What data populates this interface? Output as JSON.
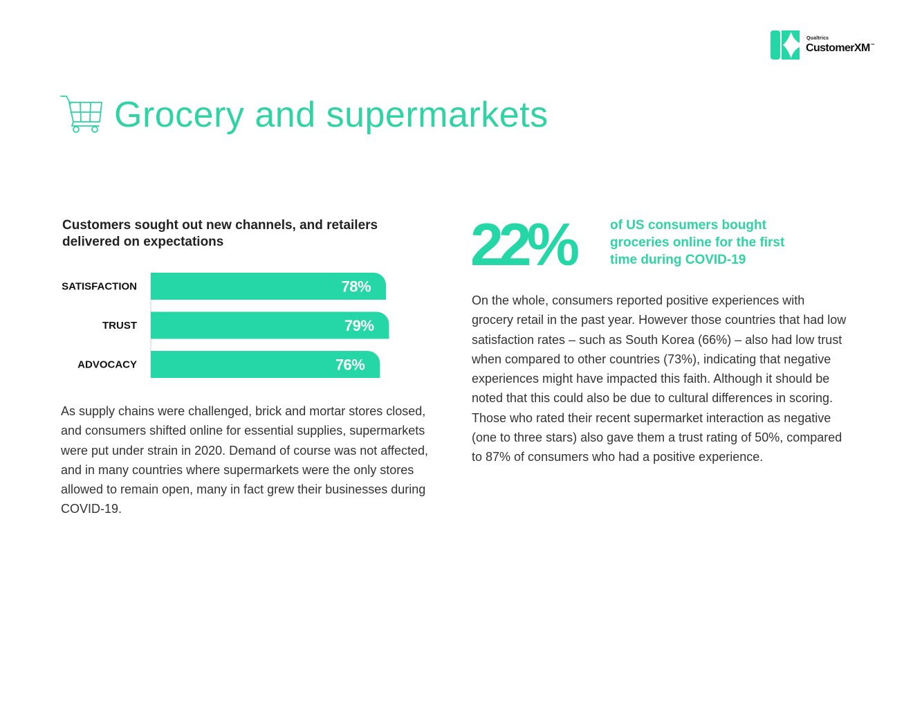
{
  "brand": {
    "company": "Qualtrics",
    "product": "CustomerXM",
    "trademark": "™",
    "accent_color": "#25d6a6"
  },
  "header": {
    "icon": "shopping-cart-icon",
    "title": "Grocery and supermarkets"
  },
  "left": {
    "chart_heading": "Customers sought out new channels, and retailers delivered on expectations",
    "body": "As supply chains were challenged, brick and mortar stores closed, and consumers shifted online for essential supplies, supermarkets were put under strain in 2020. Demand of course was not affected, and in many countries where supermarkets were the only stores allowed to remain open, many in fact grew their businesses during COVID-19."
  },
  "chart_data": {
    "type": "bar",
    "orientation": "horizontal",
    "categories": [
      "SATISFACTION",
      "TRUST",
      "ADVOCACY"
    ],
    "values": [
      78,
      79,
      76
    ],
    "value_labels": [
      "78%",
      "79%",
      "76%"
    ],
    "unit": "%",
    "title": "",
    "xlabel": "",
    "ylabel": "",
    "grid": false,
    "legend": "none",
    "bar_color": "#25d6a6",
    "label_color": "#ffffff"
  },
  "right": {
    "stat": "22%",
    "stat_caption": "of US consumers bought groceries online for the first time during COVID-19",
    "body": "On the whole, consumers reported positive experiences with grocery retail in the past year. However those countries that had low satisfaction rates – such as South Korea (66%) – also had low trust when compared to other countries (73%), indicating that negative experiences might have impacted this faith. Although it should be noted that this could also be due to cultural differences in scoring. Those who rated their recent supermarket interaction as negative (one to three stars) also gave them a trust rating of 50%, compared to 87% of consumers who had a positive experience."
  }
}
